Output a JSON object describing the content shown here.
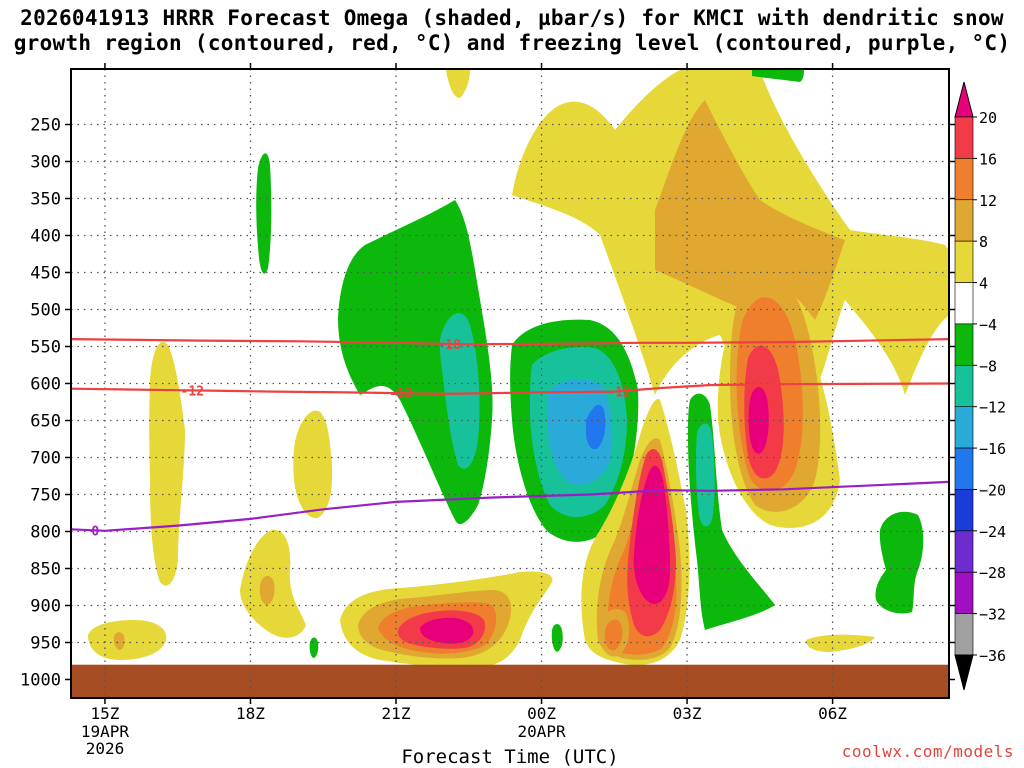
{
  "title": {
    "line1": "2026041913 HRRR Forecast Omega (shaded, µbar/s) for KMCI with dendritic snow",
    "line2": "growth region (contoured, red, °C) and freezing level (contoured, purple, °C)"
  },
  "credit": "coolwx.com/models",
  "chart_data": {
    "type": "time-height contour",
    "x_axis": {
      "label": "Forecast Time (UTC)",
      "range_hours_since_15Z": [
        -0.7,
        17.4
      ],
      "ticks": [
        {
          "hours": 0,
          "label": "15Z",
          "sublines": [
            "19APR",
            "2026"
          ]
        },
        {
          "hours": 3,
          "label": "18Z",
          "sublines": []
        },
        {
          "hours": 6,
          "label": "21Z",
          "sublines": []
        },
        {
          "hours": 9,
          "label": "00Z",
          "sublines": [
            "20APR"
          ]
        },
        {
          "hours": 12,
          "label": "03Z",
          "sublines": []
        },
        {
          "hours": 15,
          "label": "06Z",
          "sublines": []
        }
      ]
    },
    "y_axis": {
      "units": "hPa",
      "range": [
        175,
        1025
      ],
      "ticks": [
        250,
        300,
        350,
        400,
        450,
        500,
        550,
        600,
        650,
        700,
        750,
        800,
        850,
        900,
        950,
        1000
      ]
    },
    "colorbar": {
      "levels": [
        "20",
        "16",
        "12",
        "8",
        "4",
        "−4",
        "−8",
        "−12",
        "−16",
        "−20",
        "−24",
        "−28",
        "−32",
        "−36"
      ],
      "colors": [
        "#e8007a",
        "#f23a48",
        "#ef7f2c",
        "#e0a830",
        "#e6d838",
        "#ffffff",
        "#0bb80b",
        "#17c29a",
        "#2aaad8",
        "#2077ee",
        "#1b3cd8",
        "#6c2cd0",
        "#a010c0",
        "#a0a0a0",
        "#000000"
      ]
    },
    "ground_level_hPa": 980,
    "ground_color": "#a64d23",
    "contours": [
      {
        "name": "dgz-top",
        "value_C": -18,
        "label": "-18",
        "color": "#ee4040",
        "points": [
          [
            -0.7,
            540
          ],
          [
            2,
            542
          ],
          [
            4,
            543
          ],
          [
            6,
            545
          ],
          [
            7.5,
            547
          ],
          [
            10,
            546
          ],
          [
            11,
            545
          ],
          [
            12,
            545
          ],
          [
            14,
            544
          ],
          [
            17.4,
            540
          ]
        ],
        "label_at": [
          7.1
        ]
      },
      {
        "name": "dgz-bottom",
        "value_C": -12,
        "label": "-12",
        "color": "#ee4040",
        "points": [
          [
            -0.7,
            607
          ],
          [
            1.5,
            609
          ],
          [
            2.5,
            610
          ],
          [
            3.5,
            611
          ],
          [
            5,
            612
          ],
          [
            6,
            613
          ],
          [
            7,
            614
          ],
          [
            8,
            613
          ],
          [
            9,
            612
          ],
          [
            10.5,
            611
          ],
          [
            11.5,
            606
          ],
          [
            12.5,
            602
          ],
          [
            14,
            601
          ],
          [
            17.4,
            600
          ]
        ],
        "label_at": [
          1.8,
          6.1,
          10.6
        ]
      },
      {
        "name": "freezing-level",
        "value_C": 0,
        "label": "0",
        "color": "#9a1ec6",
        "points": [
          [
            -0.7,
            797
          ],
          [
            0,
            799
          ],
          [
            1.5,
            792
          ],
          [
            3,
            783
          ],
          [
            4.5,
            770
          ],
          [
            6,
            760
          ],
          [
            8,
            754
          ],
          [
            10,
            750
          ],
          [
            11.5,
            744
          ],
          [
            12.5,
            745
          ],
          [
            14,
            743
          ],
          [
            17.4,
            733
          ]
        ],
        "label_at": [
          -0.2
        ]
      }
    ]
  }
}
